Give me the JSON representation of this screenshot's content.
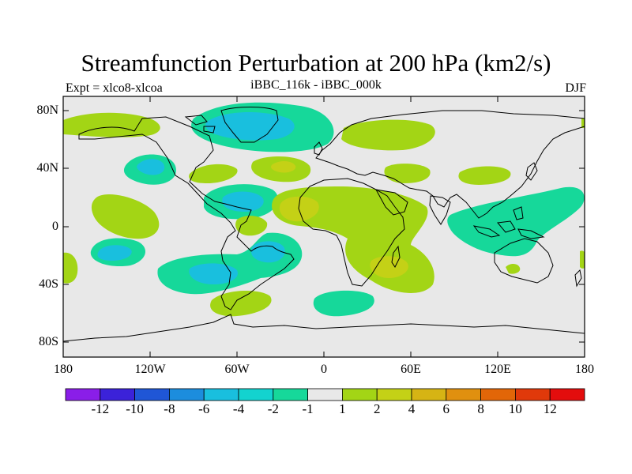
{
  "title": "Streamfunction Perturbation at 200 hPa (km2/s)",
  "left_string": "Expt = xlco8-xlcoa",
  "center_string": "iBBC_116k - iBBC_000k",
  "right_string": "DJF",
  "map": {
    "projection": "Cylindrical Equidistant",
    "lon_range": [
      -180,
      180
    ],
    "lat_range": [
      -90,
      90
    ],
    "background_color": "#e8e8e8"
  },
  "lat_labels": [
    "80N",
    "40N",
    "0",
    "40S",
    "80S"
  ],
  "lon_labels": [
    "180",
    "120W",
    "60W",
    "0",
    "60E",
    "120E",
    "180"
  ],
  "colorbar": {
    "colors": [
      "#8a1ee8",
      "#3b22d9",
      "#1f56d6",
      "#1c8ddd",
      "#19bfde",
      "#13d3cf",
      "#16d89a",
      "#e8e8e8",
      "#a3d515",
      "#c4d116",
      "#d6b414",
      "#e0900f",
      "#e26608",
      "#e0390a",
      "#e30d0d"
    ],
    "labels": [
      "-12",
      "-10",
      "-8",
      "-6",
      "-4",
      "-2",
      "-1",
      "1",
      "2",
      "4",
      "6",
      "8",
      "10",
      "12"
    ]
  },
  "field_data": {
    "type": "filled_contour",
    "variable": "streamfunction perturbation",
    "units": "km2/s",
    "level": "200 hPa",
    "season": "DJF"
  }
}
